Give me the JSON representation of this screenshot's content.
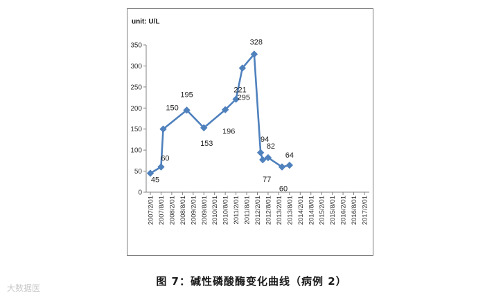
{
  "caption": "图 7：碱性磷酸酶变化曲线（病例 2）",
  "watermark": "大数据医",
  "chart_data": {
    "type": "line",
    "unit_label": "unit: U/L",
    "x": [
      "2007/2/01",
      "2007/8/01",
      "2008/2/01",
      "2008/8/01",
      "2009/2/01",
      "2009/8/01",
      "2010/2/01",
      "2010/8/01",
      "2011/2/01",
      "2011/8/01",
      "2012/2/01",
      "2012/8/01",
      "2013/2/01",
      "2013/8/01",
      "2014/2/01",
      "2014/8/01",
      "2015/2/01",
      "2015/8/01",
      "2016/2/01",
      "2016/8/01",
      "2017/2/01"
    ],
    "ylim": [
      0,
      350
    ],
    "yticks": [
      0,
      50,
      100,
      150,
      200,
      250,
      300,
      350
    ],
    "points": [
      {
        "x": 0.0,
        "y": 45,
        "label": "45"
      },
      {
        "x": 1.0,
        "y": 60,
        "label": "60"
      },
      {
        "x": 1.2,
        "y": 150,
        "label": "150"
      },
      {
        "x": 3.4,
        "y": 195,
        "label": "195"
      },
      {
        "x": 5.0,
        "y": 153,
        "label": "153"
      },
      {
        "x": 7.0,
        "y": 196,
        "label": "196"
      },
      {
        "x": 8.0,
        "y": 221,
        "label": "221"
      },
      {
        "x": 8.6,
        "y": 295,
        "label": "295"
      },
      {
        "x": 9.7,
        "y": 328,
        "label": "328"
      },
      {
        "x": 10.3,
        "y": 94,
        "label": "94"
      },
      {
        "x": 10.5,
        "y": 77,
        "label": "77"
      },
      {
        "x": 11.0,
        "y": 82,
        "label": "82"
      },
      {
        "x": 12.3,
        "y": 60,
        "label": "60"
      },
      {
        "x": 13.0,
        "y": 64,
        "label": "64"
      }
    ],
    "line_color": "#4f81bd",
    "grid": false
  }
}
